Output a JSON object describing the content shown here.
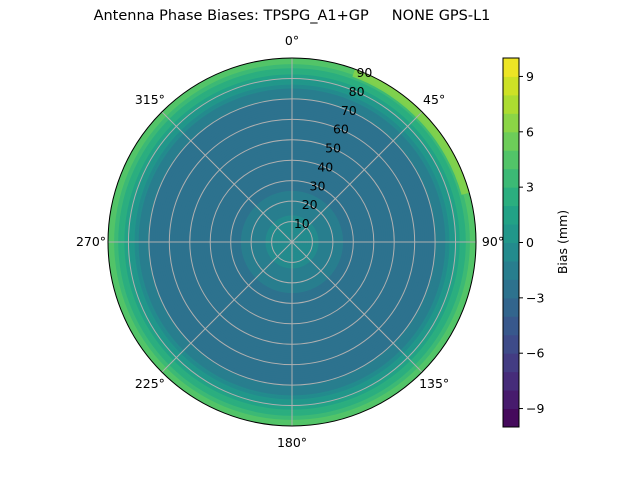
{
  "chart_data": {
    "type": "heatmap",
    "subtype": "polar-contour",
    "title": "Antenna Phase Biases: TPSPG_A1+GP     NONE GPS-L1",
    "angular_ticks": [
      "0°",
      "45°",
      "90°",
      "135°",
      "180°",
      "225°",
      "270°",
      "315°"
    ],
    "radial_ticks": [
      "10",
      "20",
      "30",
      "40",
      "50",
      "60",
      "70",
      "80",
      "90"
    ],
    "radial_range": [
      0,
      90
    ],
    "grid": true,
    "colormap": "viridis",
    "colorbar": {
      "label": "Bias (mm)",
      "range": [
        -10,
        10
      ],
      "level_step": 1,
      "ticks": [
        "−9",
        "−6",
        "−3",
        "0",
        "3",
        "6",
        "9"
      ],
      "tick_values": [
        -9,
        -6,
        -3,
        0,
        3,
        6,
        9
      ]
    },
    "approx_bias_by_zenith": {
      "zenith_deg": [
        0,
        10,
        20,
        30,
        40,
        50,
        60,
        65,
        70,
        75,
        80,
        85,
        90
      ],
      "bias_mm": [
        -0.5,
        -0.8,
        -1.5,
        -2.5,
        -3,
        -3,
        -3,
        -2.5,
        -2,
        -1,
        1,
        3,
        5
      ]
    }
  }
}
